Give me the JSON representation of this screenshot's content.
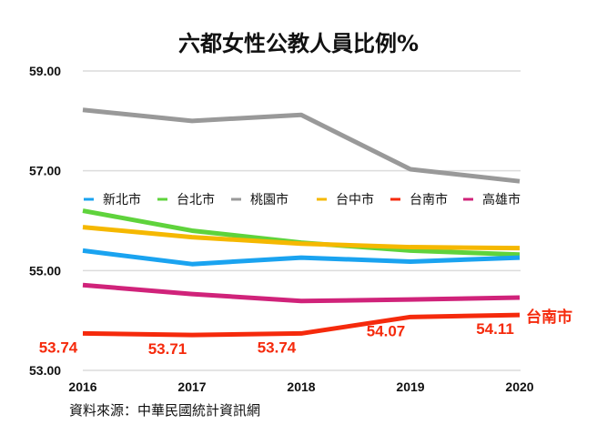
{
  "chart_data": {
    "type": "line",
    "title": "六都女性公教人員比例%",
    "source": "資料來源：中華民國統計資訊網",
    "x": [
      "2016",
      "2017",
      "2018",
      "2019",
      "2020"
    ],
    "ylim": [
      53,
      59
    ],
    "yticks": [
      "53.00",
      "55.00",
      "57.00",
      "59.00"
    ],
    "grid": true,
    "legend_position": "middle",
    "series": [
      {
        "name": "新北市",
        "color": "#1aa3f0",
        "values": [
          55.4,
          55.13,
          55.26,
          55.18,
          55.26
        ]
      },
      {
        "name": "台北市",
        "color": "#5fd33c",
        "values": [
          56.2,
          55.8,
          55.56,
          55.4,
          55.32
        ]
      },
      {
        "name": "桃園市",
        "color": "#999999",
        "values": [
          58.22,
          58.0,
          58.12,
          57.03,
          56.79
        ]
      },
      {
        "name": "台中市",
        "color": "#f5b800",
        "values": [
          55.87,
          55.67,
          55.54,
          55.47,
          55.45
        ]
      },
      {
        "name": "台南市",
        "color": "#f52a0c",
        "values": [
          53.74,
          53.71,
          53.74,
          54.07,
          54.11
        ],
        "data_labels": [
          "53.74",
          "53.71",
          "53.74",
          "54.07",
          "54.11"
        ],
        "end_label": "台南市"
      },
      {
        "name": "高雄市",
        "color": "#d0237a",
        "values": [
          54.71,
          54.53,
          54.39,
          54.42,
          54.46
        ]
      }
    ]
  }
}
